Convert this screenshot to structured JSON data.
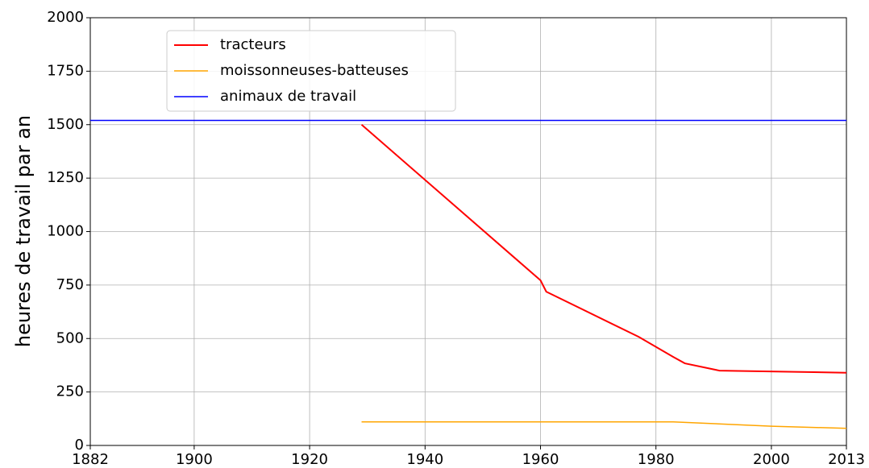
{
  "chart_data": {
    "type": "line",
    "ylabel": "heures de travail par an",
    "xlim": [
      1882,
      2013
    ],
    "xticks": [
      1882,
      1900,
      1920,
      1940,
      1960,
      1980,
      2000,
      2013
    ],
    "ylim": [
      0,
      2000
    ],
    "yticks": [
      0,
      250,
      500,
      750,
      1000,
      1250,
      1500,
      1750,
      2000
    ],
    "grid": true,
    "legend": "upper left",
    "series": [
      {
        "name": "tracteurs",
        "color": "#ff0000",
        "x": [
          1929,
          1960,
          1961,
          1977,
          1983,
          1985,
          1991,
          2013
        ],
        "values": [
          1500,
          772,
          719,
          508,
          414,
          384,
          350,
          340
        ]
      },
      {
        "name": "moissonneuses-batteuses",
        "color": "#ffa500",
        "x": [
          1929,
          1983,
          2000,
          2013
        ],
        "values": [
          110,
          110,
          90,
          80
        ]
      },
      {
        "name": "animaux de travail",
        "color": "#0000ff",
        "x": [
          1882,
          2013
        ],
        "values": [
          1520,
          1520
        ]
      }
    ]
  }
}
